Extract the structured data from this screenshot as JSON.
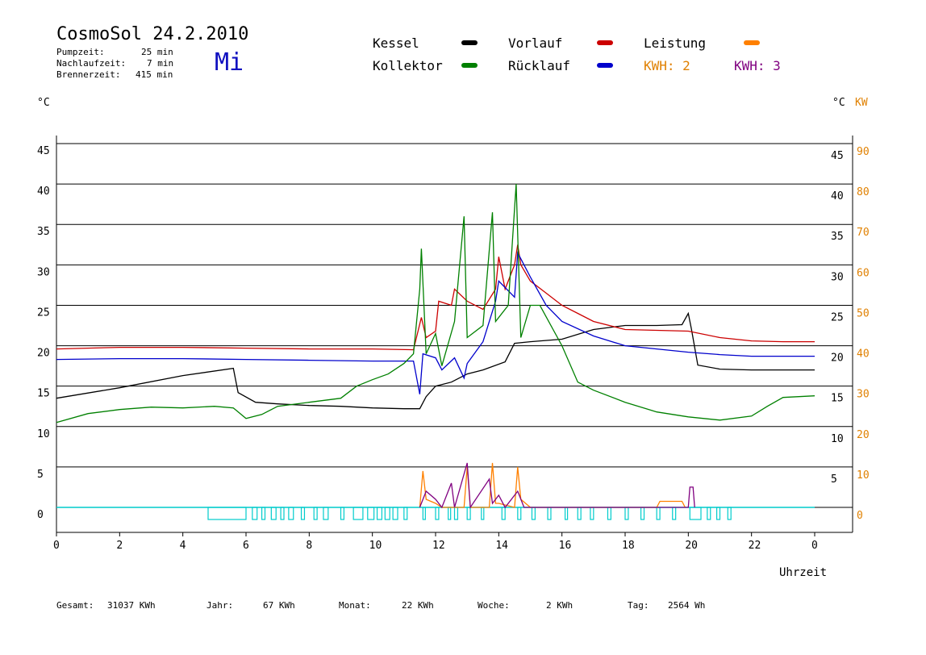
{
  "header": {
    "title": "CosmoSol 24.2.2010",
    "day": "Mi",
    "pump_label": "Pumpzeit:",
    "pump_value": "25 min",
    "nach_label": "Nachlaufzeit:",
    "nach_value": "7 min",
    "brenner_label": "Brennerzeit:",
    "brenner_value": "415 min"
  },
  "legend": {
    "kessel": "Kessel",
    "kollektor": "Kollektor",
    "vorlauf": "Vorlauf",
    "ruecklauf": "Rücklauf",
    "leistung": "Leistung",
    "kwh2": "KWH: 2",
    "kwh3": "KWH: 3",
    "colors": {
      "kessel": "#000000",
      "kollektor": "#008000",
      "vorlauf": "#cc0000",
      "ruecklauf": "#0000cc",
      "leistung": "#ff8000",
      "kwh3": "#800080",
      "pump": "#00cccc"
    }
  },
  "axes": {
    "left_unit": "°C",
    "right_unit": "°C",
    "right_unit2": "KW",
    "xlabel": "Uhrzeit"
  },
  "footer": {
    "gesamt_label": "Gesamt:",
    "gesamt_value": "31037 KWh",
    "jahr_label": "Jahr:",
    "jahr_value": "67 KWh",
    "monat_label": "Monat:",
    "monat_value": "22 KWh",
    "woche_label": "Woche:",
    "woche_value": "2 KWh",
    "tag_label": "Tag:",
    "tag_value": "2564 Wh"
  },
  "chart_data": {
    "type": "line",
    "x_ticks": [
      "0",
      "2",
      "4",
      "6",
      "8",
      "10",
      "12",
      "14",
      "16",
      "18",
      "20",
      "22",
      "0"
    ],
    "y_ticks": [
      0,
      5,
      10,
      15,
      20,
      25,
      30,
      35,
      40,
      45
    ],
    "y_ticks_right_c": [
      5,
      10,
      15,
      20,
      25,
      30,
      35,
      40,
      45
    ],
    "y_ticks_right_kw": [
      0,
      10,
      20,
      30,
      40,
      50,
      60,
      70,
      80,
      90
    ],
    "ylim": [
      0,
      46
    ],
    "xlim": [
      0,
      24
    ],
    "grid": true,
    "series": [
      {
        "name": "Kessel",
        "color": "#000000",
        "points": [
          [
            0,
            13.5
          ],
          [
            2,
            14.8
          ],
          [
            4,
            16.3
          ],
          [
            5.6,
            17.2
          ],
          [
            5.75,
            14.2
          ],
          [
            6.3,
            13
          ],
          [
            7,
            12.8
          ],
          [
            8,
            12.6
          ],
          [
            9,
            12.5
          ],
          [
            10,
            12.3
          ],
          [
            11,
            12.2
          ],
          [
            11.5,
            12.2
          ],
          [
            11.7,
            13.7
          ],
          [
            12,
            15
          ],
          [
            12.5,
            15.5
          ],
          [
            13,
            16.5
          ],
          [
            13.5,
            17
          ],
          [
            14.2,
            18
          ],
          [
            14.5,
            20.3
          ],
          [
            15,
            20.5
          ],
          [
            16,
            20.8
          ],
          [
            17,
            22
          ],
          [
            18,
            22.5
          ],
          [
            19,
            22.5
          ],
          [
            19.8,
            22.6
          ],
          [
            20,
            24
          ],
          [
            20.1,
            22
          ],
          [
            20.3,
            17.6
          ],
          [
            21,
            17.1
          ],
          [
            22,
            17
          ],
          [
            23,
            17
          ],
          [
            24,
            17
          ]
        ]
      },
      {
        "name": "Vorlauf",
        "color": "#cc0000",
        "points": [
          [
            0,
            19.6
          ],
          [
            2,
            19.8
          ],
          [
            4,
            19.8
          ],
          [
            6,
            19.7
          ],
          [
            8,
            19.6
          ],
          [
            10,
            19.6
          ],
          [
            11.3,
            19.5
          ],
          [
            11.55,
            23.5
          ],
          [
            11.7,
            21
          ],
          [
            12,
            21.8
          ],
          [
            12.1,
            25.5
          ],
          [
            12.5,
            25
          ],
          [
            12.6,
            27
          ],
          [
            13,
            25.5
          ],
          [
            13.5,
            24.5
          ],
          [
            13.9,
            27
          ],
          [
            14,
            31
          ],
          [
            14.2,
            27
          ],
          [
            14.5,
            30
          ],
          [
            14.6,
            32.5
          ],
          [
            14.7,
            30
          ],
          [
            15,
            28
          ],
          [
            15.5,
            26.5
          ],
          [
            16,
            25
          ],
          [
            16.5,
            24
          ],
          [
            17,
            23
          ],
          [
            18,
            22
          ],
          [
            19,
            21.9
          ],
          [
            20,
            21.8
          ],
          [
            21,
            21
          ],
          [
            22,
            20.6
          ],
          [
            23,
            20.5
          ],
          [
            24,
            20.5
          ]
        ]
      },
      {
        "name": "Rücklauf",
        "color": "#0000cc",
        "points": [
          [
            0,
            18.3
          ],
          [
            2,
            18.4
          ],
          [
            4,
            18.4
          ],
          [
            6,
            18.3
          ],
          [
            8,
            18.2
          ],
          [
            10,
            18.1
          ],
          [
            11.3,
            18.1
          ],
          [
            11.5,
            14
          ],
          [
            11.6,
            19
          ],
          [
            12,
            18.5
          ],
          [
            12.2,
            17
          ],
          [
            12.6,
            18.5
          ],
          [
            12.9,
            16
          ],
          [
            13,
            17.8
          ],
          [
            13.5,
            20.5
          ],
          [
            13.9,
            25.5
          ],
          [
            14,
            28
          ],
          [
            14.5,
            26
          ],
          [
            14.6,
            31.5
          ],
          [
            15,
            28.5
          ],
          [
            15.5,
            25
          ],
          [
            16,
            23
          ],
          [
            17,
            21.2
          ],
          [
            18,
            20
          ],
          [
            19,
            19.6
          ],
          [
            20,
            19.2
          ],
          [
            21,
            18.9
          ],
          [
            22,
            18.7
          ],
          [
            23,
            18.7
          ],
          [
            24,
            18.7
          ]
        ]
      },
      {
        "name": "Kollektor",
        "color": "#008000",
        "points": [
          [
            0,
            10.5
          ],
          [
            1,
            11.6
          ],
          [
            2,
            12.1
          ],
          [
            3,
            12.4
          ],
          [
            4,
            12.3
          ],
          [
            5,
            12.5
          ],
          [
            5.6,
            12.3
          ],
          [
            6,
            11
          ],
          [
            6.5,
            11.5
          ],
          [
            7,
            12.5
          ],
          [
            8,
            13
          ],
          [
            9,
            13.5
          ],
          [
            9.5,
            15
          ],
          [
            10,
            15.8
          ],
          [
            10.5,
            16.5
          ],
          [
            11,
            17.8
          ],
          [
            11.3,
            19
          ],
          [
            11.5,
            27
          ],
          [
            11.55,
            32
          ],
          [
            11.7,
            19
          ],
          [
            12,
            21.5
          ],
          [
            12.2,
            17.5
          ],
          [
            12.6,
            23
          ],
          [
            12.9,
            36
          ],
          [
            13,
            21
          ],
          [
            13.5,
            22.5
          ],
          [
            13.8,
            36.5
          ],
          [
            13.9,
            23
          ],
          [
            14.3,
            25
          ],
          [
            14.55,
            40
          ],
          [
            14.7,
            21
          ],
          [
            15,
            25
          ],
          [
            15.3,
            25
          ],
          [
            16,
            20
          ],
          [
            16.5,
            15.5
          ],
          [
            17,
            14.5
          ],
          [
            18,
            13
          ],
          [
            19,
            11.8
          ],
          [
            20,
            11.2
          ],
          [
            21,
            10.8
          ],
          [
            22,
            11.3
          ],
          [
            22.5,
            12.5
          ],
          [
            23,
            13.6
          ],
          [
            23.5,
            13.7
          ],
          [
            24,
            13.8
          ]
        ]
      },
      {
        "name": "Leistung",
        "color": "#ff8000",
        "scale": "kw",
        "points": [
          [
            11.5,
            0
          ],
          [
            11.6,
            9
          ],
          [
            11.7,
            2
          ],
          [
            12,
            1
          ],
          [
            12.2,
            0
          ],
          [
            12.9,
            0
          ],
          [
            13,
            10
          ],
          [
            13.1,
            0
          ],
          [
            13.7,
            0
          ],
          [
            13.8,
            11
          ],
          [
            13.9,
            1
          ],
          [
            14,
            1
          ],
          [
            14.5,
            0
          ],
          [
            14.6,
            10
          ],
          [
            14.7,
            2
          ],
          [
            15,
            0
          ],
          [
            19,
            0
          ],
          [
            19.1,
            1.5
          ],
          [
            19.8,
            1.5
          ],
          [
            19.9,
            0
          ]
        ]
      },
      {
        "name": "KWH 3",
        "color": "#800080",
        "scale": "kw",
        "points": [
          [
            11.5,
            0
          ],
          [
            11.7,
            4
          ],
          [
            12,
            2
          ],
          [
            12.2,
            0
          ],
          [
            12.5,
            6
          ],
          [
            12.6,
            0
          ],
          [
            13,
            11
          ],
          [
            13.1,
            0
          ],
          [
            13.7,
            7
          ],
          [
            13.8,
            1
          ],
          [
            14,
            3
          ],
          [
            14.2,
            0
          ],
          [
            14.6,
            4
          ],
          [
            14.8,
            0
          ],
          [
            15,
            0
          ],
          [
            20,
            0
          ],
          [
            20.05,
            5
          ],
          [
            20.15,
            5
          ],
          [
            20.2,
            0
          ]
        ]
      }
    ],
    "pump_runs": [
      [
        4.8,
        6
      ],
      [
        6.2,
        6.35
      ],
      [
        6.5,
        6.6
      ],
      [
        6.8,
        6.95
      ],
      [
        7.1,
        7.2
      ],
      [
        7.35,
        7.5
      ],
      [
        7.75,
        7.85
      ],
      [
        8.15,
        8.25
      ],
      [
        8.45,
        8.6
      ],
      [
        9,
        9.1
      ],
      [
        9.4,
        9.7
      ],
      [
        9.85,
        10.05
      ],
      [
        10.15,
        10.3
      ],
      [
        10.4,
        10.55
      ],
      [
        10.65,
        10.8
      ],
      [
        11,
        11.1
      ],
      [
        11.6,
        11.65
      ],
      [
        12,
        12.1
      ],
      [
        12.4,
        12.45
      ],
      [
        12.6,
        12.7
      ],
      [
        13,
        13.1
      ],
      [
        13.45,
        13.5
      ],
      [
        14.1,
        14.2
      ],
      [
        14.6,
        14.7
      ],
      [
        15.05,
        15.15
      ],
      [
        15.55,
        15.65
      ],
      [
        16.1,
        16.15
      ],
      [
        16.5,
        16.6
      ],
      [
        16.9,
        17
      ],
      [
        17.45,
        17.55
      ],
      [
        18,
        18.1
      ],
      [
        18.5,
        18.6
      ],
      [
        19,
        19.1
      ],
      [
        19.5,
        19.6
      ],
      [
        20.05,
        20.4
      ],
      [
        20.6,
        20.7
      ],
      [
        20.9,
        21
      ],
      [
        21.25,
        21.35
      ]
    ]
  }
}
